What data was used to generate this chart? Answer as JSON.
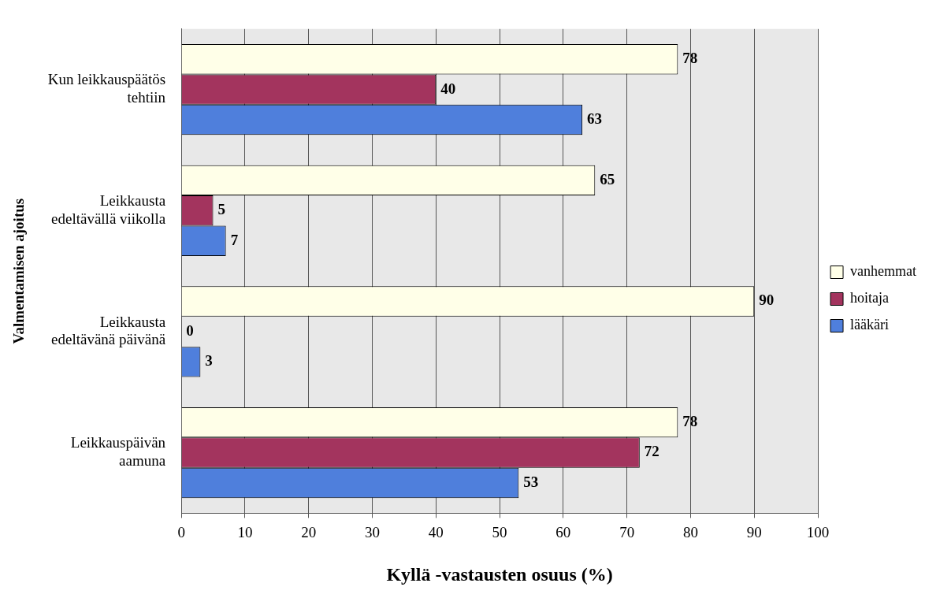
{
  "chart_data": {
    "type": "bar",
    "orientation": "horizontal",
    "xlabel": "Kyllä -vastausten osuus (%)",
    "ylabel": "Valmentamisen ajoitus",
    "categories": [
      "Kun leikkauspäätös tehtiin",
      "Leikkausta edeltävällä viikolla",
      "Leikkausta edeltävänä päivänä",
      "Leikkauspäivän aamuna"
    ],
    "series": [
      {
        "name": "vanhemmat",
        "color": "#ffffe8",
        "values": [
          78,
          65,
          90,
          78
        ]
      },
      {
        "name": "hoitaja",
        "color": "#a3345e",
        "values": [
          40,
          5,
          0,
          72
        ]
      },
      {
        "name": "lääkäri",
        "color": "#4f7fdc",
        "values": [
          63,
          7,
          3,
          53
        ]
      }
    ],
    "xlim": [
      0,
      100
    ],
    "xticks": [
      0,
      10,
      20,
      30,
      40,
      50,
      60,
      70,
      80,
      90,
      100
    ],
    "grid": "x",
    "legend": "right",
    "data_labels": true
  }
}
